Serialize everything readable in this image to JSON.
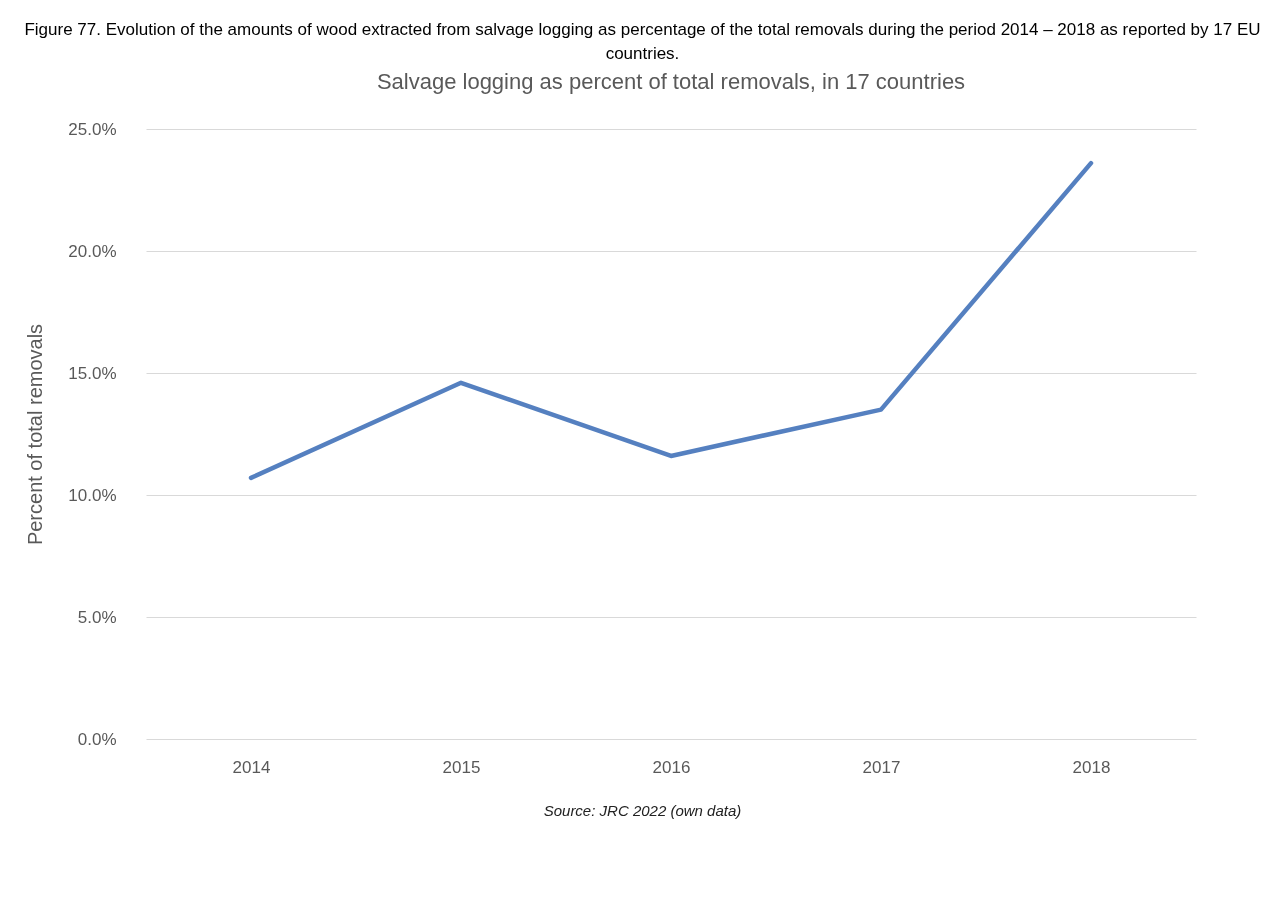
{
  "chart_data": {
    "type": "line",
    "title": "Figure 77. Evolution of the amounts of wood extracted from salvage logging as percentage of the total removals during the period 2014 – 2018 as reported by 17 EU countries.",
    "subtitle": "Salvage logging as percent of total removals, in 17 countries",
    "ylabel": "Percent of total removals",
    "categories": [
      "2014",
      "2015",
      "2016",
      "2017",
      "2018"
    ],
    "series": [
      {
        "color": "#5580c0",
        "values": [
          10.7,
          14.6,
          11.6,
          13.5,
          23.6
        ]
      }
    ],
    "ylim": [
      0,
      25
    ],
    "yticks": [
      {
        "value": 0,
        "label": "0.0%"
      },
      {
        "value": 5,
        "label": "5.0%"
      },
      {
        "value": 10,
        "label": "10.0%"
      },
      {
        "value": 15,
        "label": "15.0%"
      },
      {
        "value": 20,
        "label": "20.0%"
      },
      {
        "value": 25,
        "label": "25.0%"
      }
    ],
    "grid": "y",
    "marker": "none",
    "line_style": "solid",
    "annotations": [
      "Source: JRC 2022 (own data)"
    ]
  }
}
